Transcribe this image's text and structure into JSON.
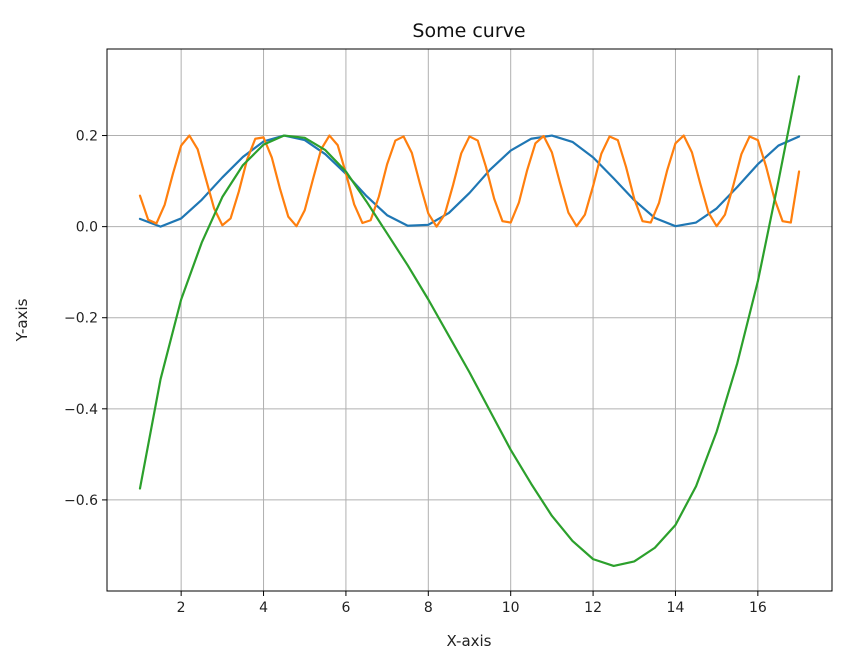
{
  "chart_data": {
    "type": "line",
    "title": "Some curve",
    "xlabel": "X-axis",
    "ylabel": "Y-axis",
    "xlim": [
      0.2,
      17.8
    ],
    "ylim": [
      -0.8,
      0.39
    ],
    "grid": true,
    "x_ticks": [
      2,
      4,
      6,
      8,
      10,
      12,
      14,
      16
    ],
    "x_tick_labels": [
      "2",
      "4",
      "6",
      "8",
      "10",
      "12",
      "14",
      "16"
    ],
    "y_ticks": [
      -0.6,
      -0.4,
      -0.2,
      0.0,
      0.2
    ],
    "y_tick_labels": [
      "−0.6",
      "−0.4",
      "−0.2",
      "0.0",
      "0.2"
    ],
    "colors": [
      "#1f77b4",
      "#ff7f0e",
      "#2ca02c"
    ],
    "series": [
      {
        "x": [
          1,
          1.5,
          2,
          2.5,
          3,
          3.5,
          4,
          4.5,
          5,
          5.5,
          6,
          6.5,
          7,
          7.5,
          8,
          8.5,
          9,
          9.5,
          10,
          10.5,
          11,
          11.5,
          12,
          12.5,
          13,
          13.5,
          14,
          14.5,
          15,
          15.5,
          16,
          16.5,
          17
        ],
        "y": [
          0.017,
          0.0,
          0.018,
          0.059,
          0.108,
          0.153,
          0.187,
          0.2,
          0.19,
          0.159,
          0.116,
          0.067,
          0.025,
          0.002,
          0.004,
          0.03,
          0.074,
          0.125,
          0.167,
          0.193,
          0.2,
          0.186,
          0.152,
          0.106,
          0.058,
          0.019,
          0.001,
          0.009,
          0.04,
          0.087,
          0.137,
          0.178,
          0.198
        ]
      },
      {
        "x": [
          1,
          1.2,
          1.4,
          1.6,
          1.8,
          2,
          2.2,
          2.4,
          2.6,
          2.8,
          3,
          3.2,
          3.4,
          3.6,
          3.8,
          4,
          4.2,
          4.4,
          4.6,
          4.8,
          5,
          5.2,
          5.4,
          5.6,
          5.8,
          6,
          6.2,
          6.4,
          6.6,
          6.8,
          7,
          7.2,
          7.4,
          7.6,
          7.8,
          8,
          8.2,
          8.4,
          8.6,
          8.8,
          9,
          9.2,
          9.4,
          9.6,
          9.8,
          10,
          10.2,
          10.4,
          10.6,
          10.8,
          11,
          11.2,
          11.4,
          11.6,
          11.8,
          12,
          12.2,
          12.4,
          12.6,
          12.8,
          13,
          13.2,
          13.4,
          13.6,
          13.8,
          14,
          14.2,
          14.4,
          14.6,
          14.8,
          15,
          15.2,
          15.4,
          15.6,
          15.8,
          16,
          16.2,
          16.4,
          16.6,
          16.8,
          17
        ],
        "y": [
          0.068,
          0.015,
          0.007,
          0.048,
          0.116,
          0.178,
          0.2,
          0.17,
          0.105,
          0.04,
          0.003,
          0.018,
          0.077,
          0.147,
          0.193,
          0.196,
          0.152,
          0.083,
          0.022,
          0.001,
          0.036,
          0.104,
          0.17,
          0.2,
          0.179,
          0.117,
          0.049,
          0.008,
          0.014,
          0.066,
          0.137,
          0.189,
          0.198,
          0.162,
          0.093,
          0.029,
          0.0,
          0.027,
          0.091,
          0.161,
          0.198,
          0.189,
          0.131,
          0.061,
          0.012,
          0.009,
          0.053,
          0.124,
          0.183,
          0.199,
          0.163,
          0.095,
          0.031,
          0.001,
          0.026,
          0.089,
          0.16,
          0.198,
          0.19,
          0.131,
          0.061,
          0.012,
          0.009,
          0.052,
          0.124,
          0.183,
          0.2,
          0.163,
          0.095,
          0.031,
          0.001,
          0.026,
          0.089,
          0.159,
          0.198,
          0.19,
          0.132,
          0.062,
          0.012,
          0.009,
          0.121
        ]
      },
      {
        "x": [
          1,
          1.5,
          2,
          2.5,
          3,
          3.5,
          4,
          4.5,
          5,
          5.5,
          6,
          6.5,
          7,
          7.5,
          8,
          8.5,
          9,
          9.5,
          10,
          10.5,
          11,
          11.5,
          12,
          12.5,
          13,
          13.5,
          14,
          14.5,
          15,
          15.5,
          16,
          16.5,
          17
        ],
        "y": [
          -0.575,
          -0.335,
          -0.16,
          -0.035,
          0.065,
          0.135,
          0.18,
          0.2,
          0.195,
          0.168,
          0.121,
          0.055,
          -0.015,
          -0.085,
          -0.16,
          -0.24,
          -0.32,
          -0.405,
          -0.49,
          -0.565,
          -0.635,
          -0.69,
          -0.73,
          -0.745,
          -0.735,
          -0.705,
          -0.655,
          -0.57,
          -0.45,
          -0.3,
          -0.12,
          0.1,
          0.33
        ]
      }
    ]
  }
}
